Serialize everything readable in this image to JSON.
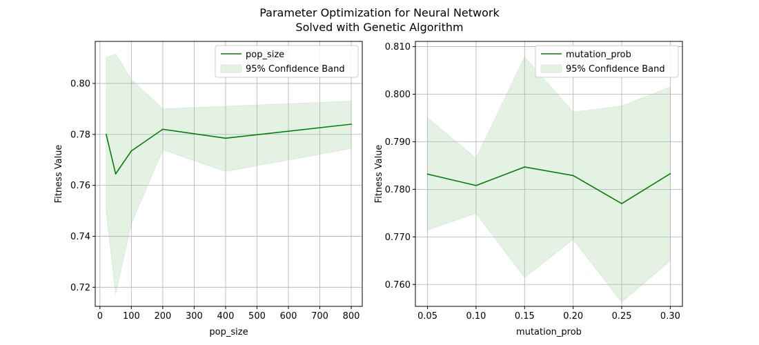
{
  "figure": {
    "title_line1": "Parameter Optimization for Neural Network",
    "title_line2": "Solved with Genetic Algorithm"
  },
  "colors": {
    "line": "#008000",
    "band": "#c8e6c8",
    "band_edge": "#d6ebd6",
    "grid": "#b0b0b0",
    "axes": "#000000",
    "legend_border": "#cccccc"
  },
  "chart_data": [
    {
      "type": "line",
      "xlabel": "pop_size",
      "ylabel": "Fitness Value",
      "xlim": [
        -15,
        835
      ],
      "ylim": [
        0.7125,
        0.8165
      ],
      "xticks": [
        0,
        100,
        200,
        300,
        400,
        500,
        600,
        700,
        800
      ],
      "xtick_labels": [
        "0",
        "100",
        "200",
        "300",
        "400",
        "500",
        "600",
        "700",
        "800"
      ],
      "yticks": [
        0.72,
        0.74,
        0.76,
        0.78,
        0.8
      ],
      "ytick_labels": [
        "0.72",
        "0.74",
        "0.76",
        "0.78",
        "0.80"
      ],
      "grid": true,
      "legend_position": "upper right",
      "legend": [
        "pop_size",
        "95% Confidence Band"
      ],
      "x": [
        20,
        50,
        100,
        200,
        400,
        800
      ],
      "series": [
        {
          "name": "pop_size",
          "values": [
            0.78,
            0.7645,
            0.7735,
            0.782,
            0.7785,
            0.784
          ]
        }
      ],
      "band": {
        "name": "95% Confidence Band",
        "lower": [
          0.75,
          0.7175,
          0.745,
          0.774,
          0.7655,
          0.7745
        ],
        "upper": [
          0.81,
          0.8115,
          0.8015,
          0.79,
          0.791,
          0.793
        ]
      }
    },
    {
      "type": "line",
      "xlabel": "mutation_prob",
      "ylabel": "Fitness Value",
      "xlim": [
        0.0375,
        0.3125
      ],
      "ylim": [
        0.7554,
        0.8111
      ],
      "xticks": [
        0.05,
        0.1,
        0.15,
        0.2,
        0.25,
        0.3
      ],
      "xtick_labels": [
        "0.05",
        "0.10",
        "0.15",
        "0.20",
        "0.25",
        "0.30"
      ],
      "yticks": [
        0.76,
        0.77,
        0.78,
        0.79,
        0.8,
        0.81
      ],
      "ytick_labels": [
        "0.760",
        "0.770",
        "0.780",
        "0.790",
        "0.800",
        "0.810"
      ],
      "grid": true,
      "legend_position": "upper right",
      "legend": [
        "mutation_prob",
        "95% Confidence Band"
      ],
      "x": [
        0.05,
        0.1,
        0.15,
        0.2,
        0.25,
        0.3
      ],
      "series": [
        {
          "name": "mutation_prob",
          "values": [
            0.7832,
            0.7808,
            0.7847,
            0.7829,
            0.777,
            0.7833
          ]
        }
      ],
      "band": {
        "name": "95% Confidence Band",
        "lower": [
          0.7715,
          0.775,
          0.7615,
          0.7695,
          0.7563,
          0.765
        ],
        "upper": [
          0.795,
          0.7865,
          0.8078,
          0.7962,
          0.7975,
          0.8015
        ]
      }
    }
  ]
}
